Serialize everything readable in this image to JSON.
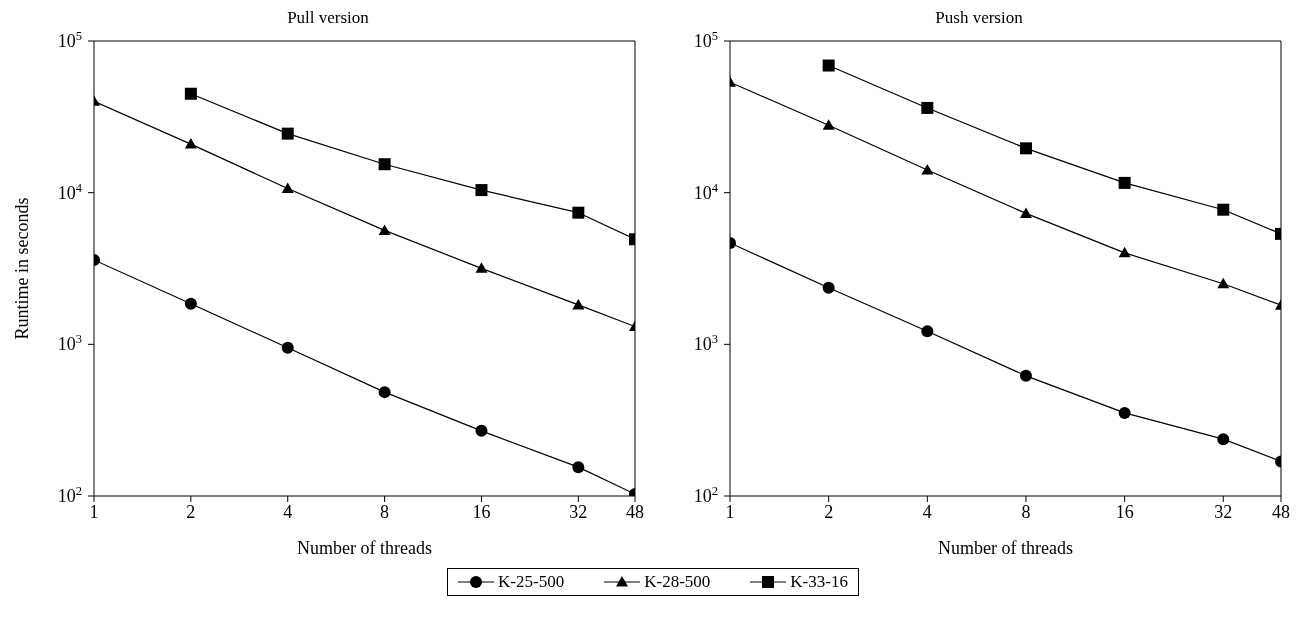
{
  "chart_data": [
    {
      "type": "line",
      "title": "Pull version",
      "xlabel": "Number of threads",
      "ylabel": "Runtime in seconds",
      "log": "xy",
      "grid": false,
      "legend": "bottom",
      "xlim": [
        1,
        48
      ],
      "xticks": [
        1,
        2,
        4,
        8,
        16,
        32,
        48
      ],
      "ylim": [
        100,
        100000
      ],
      "yticks": [
        {
          "value": 100,
          "label": "10$^{2}$"
        },
        {
          "value": 1000,
          "label": "10$^{3}$"
        },
        {
          "value": 10000,
          "label": "10$^{4}$"
        },
        {
          "value": 100000,
          "label": "10$^{5}$"
        }
      ],
      "series": [
        {
          "name": "K-25-500",
          "color": "#000000",
          "marker": "circle",
          "x": [
            1,
            2,
            4,
            8,
            16,
            32,
            48
          ],
          "values": [
            3600,
            1850,
            950,
            484,
            269,
            155,
            103
          ]
        },
        {
          "name": "K-28-500",
          "color": "#000000",
          "marker": "triangle",
          "x": [
            1,
            2,
            4,
            8,
            16,
            32,
            48
          ],
          "values": [
            40000,
            20900,
            10650,
            5640,
            3170,
            1820,
            1310
          ]
        },
        {
          "name": "K-33-16",
          "color": "#000000",
          "marker": "square",
          "x": [
            2,
            4,
            8,
            16,
            32,
            48
          ],
          "values": [
            44900,
            24500,
            15400,
            10400,
            7380,
            4930
          ]
        }
      ]
    },
    {
      "type": "line",
      "title": "Push version",
      "xlabel": "Number of threads",
      "log": "xy",
      "grid": false,
      "legend": "bottom",
      "xlim": [
        1,
        48
      ],
      "xticks": [
        1,
        2,
        4,
        8,
        16,
        32,
        48
      ],
      "ylim": [
        100,
        100000
      ],
      "yticks": [
        {
          "value": 100,
          "label": "10$^{2}$"
        },
        {
          "value": 1000,
          "label": "10$^{3}$"
        },
        {
          "value": 10000,
          "label": "10$^{4}$"
        },
        {
          "value": 100000,
          "label": "10$^{5}$"
        }
      ],
      "series": [
        {
          "name": "K-25-500",
          "color": "#000000",
          "marker": "circle",
          "x": [
            1,
            2,
            4,
            8,
            16,
            32,
            48
          ],
          "values": [
            4660,
            2360,
            1220,
            620,
            353,
            237,
            169
          ]
        },
        {
          "name": "K-28-500",
          "color": "#000000",
          "marker": "triangle",
          "x": [
            1,
            2,
            4,
            8,
            16,
            32,
            48
          ],
          "values": [
            53500,
            27800,
            14100,
            7300,
            4010,
            2510,
            1810
          ]
        },
        {
          "name": "K-33-16",
          "color": "#000000",
          "marker": "square",
          "x": [
            2,
            4,
            8,
            16,
            32,
            48
          ],
          "values": [
            68900,
            36200,
            19600,
            11600,
            7720,
            5350
          ]
        }
      ]
    }
  ]
}
